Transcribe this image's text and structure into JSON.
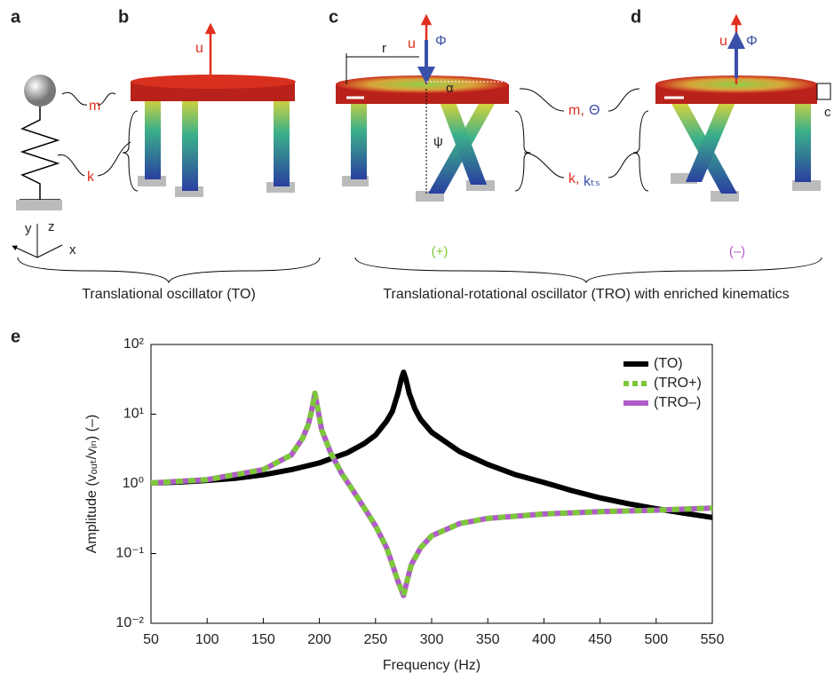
{
  "diagram": {
    "panels": [
      "a",
      "b",
      "c",
      "d"
    ],
    "labels": {
      "m_a": "m",
      "k_a": "k",
      "u_b": "u",
      "r": "r",
      "u_c": "u",
      "phi_c": "Φ",
      "alpha": "α",
      "psi": "ψ",
      "m_c": "m,",
      "theta": "Θ",
      "k_c": "k,",
      "kts": "kₜₛ",
      "u_d": "u",
      "phi_d": "Φ",
      "c_d": "c",
      "axis_x": "x",
      "axis_y": "y",
      "axis_z": "z",
      "plus": "(+)",
      "minus": "(–)"
    },
    "captions": [
      "Translational oscillator (TO)",
      "Translational-rotational oscillator (TRO) with enriched kinematics"
    ]
  },
  "chart_data": {
    "type": "line",
    "panel": "e",
    "x_label": "Frequency (Hz)",
    "y_label": "Amplitude (vₒᵤₜ/vᵢₙ) (–)",
    "log_y": true,
    "xlim": [
      50,
      550
    ],
    "ylim": [
      0.01,
      100
    ],
    "xticks": [
      50,
      100,
      150,
      200,
      250,
      300,
      350,
      400,
      450,
      500,
      550
    ],
    "yticks": [
      {
        "value": 0.01,
        "label": "10⁻²"
      },
      {
        "value": 0.1,
        "label": "10⁻¹"
      },
      {
        "value": 1,
        "label": "10⁰"
      },
      {
        "value": 10,
        "label": "10¹"
      },
      {
        "value": 100,
        "label": "10²"
      }
    ],
    "legend": "top-right",
    "series": [
      {
        "name": "(TO)",
        "color": "#000000",
        "x": [
          50,
          75,
          100,
          125,
          150,
          175,
          200,
          225,
          240,
          250,
          260,
          265,
          270,
          273,
          275,
          277,
          280,
          285,
          290,
          300,
          325,
          350,
          375,
          400,
          425,
          450,
          475,
          500,
          525,
          550
        ],
        "values": [
          1.03,
          1.06,
          1.12,
          1.2,
          1.35,
          1.6,
          2.0,
          2.8,
          3.8,
          5.0,
          8,
          11,
          20,
          32,
          40,
          32,
          20,
          12,
          8.5,
          5.5,
          2.9,
          1.9,
          1.35,
          1.05,
          0.8,
          0.63,
          0.52,
          0.44,
          0.38,
          0.33
        ]
      },
      {
        "name": "(TRO+)",
        "color": "#7dc83a",
        "dashed": true,
        "x": [
          50,
          100,
          150,
          175,
          185,
          190,
          193,
          196,
          199,
          202,
          210,
          220,
          230,
          240,
          250,
          260,
          265,
          270,
          275,
          278,
          282,
          290,
          300,
          325,
          350,
          400,
          450,
          500,
          550
        ],
        "values": [
          1.03,
          1.15,
          1.6,
          2.6,
          4.5,
          7,
          11,
          20,
          11,
          6,
          2.8,
          1.4,
          0.8,
          0.45,
          0.25,
          0.12,
          0.07,
          0.04,
          0.025,
          0.04,
          0.07,
          0.12,
          0.18,
          0.27,
          0.32,
          0.37,
          0.4,
          0.42,
          0.45
        ]
      },
      {
        "name": "(TRO–)",
        "color": "#b05cc8",
        "x": [
          50,
          100,
          150,
          175,
          185,
          190,
          193,
          196,
          199,
          202,
          210,
          220,
          230,
          240,
          250,
          260,
          265,
          270,
          275,
          278,
          282,
          290,
          300,
          325,
          350,
          400,
          450,
          500,
          550
        ],
        "values": [
          1.03,
          1.15,
          1.6,
          2.6,
          4.5,
          7,
          11,
          20,
          11,
          6,
          2.8,
          1.4,
          0.8,
          0.45,
          0.25,
          0.12,
          0.07,
          0.04,
          0.025,
          0.04,
          0.07,
          0.12,
          0.18,
          0.27,
          0.32,
          0.37,
          0.4,
          0.42,
          0.45
        ]
      }
    ]
  }
}
